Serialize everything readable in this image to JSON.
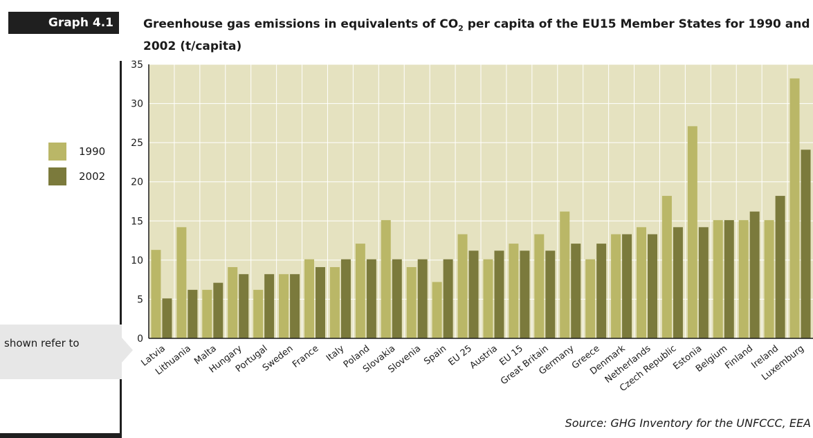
{
  "header": {
    "graph_label": "Graph 4.1",
    "title_main": "Greenhouse gas emissions in equivalents of CO",
    "title_sub": "2",
    "title_rest": " per capita of the EU15 Member States for 1990 and 2002 (t/capita)"
  },
  "legend": {
    "items": [
      {
        "label": "1990",
        "color": "#bab767"
      },
      {
        "label": "2002",
        "color": "#7b7a3c"
      }
    ]
  },
  "side_note": {
    "text": "shown refer to"
  },
  "source": "Source: GHG Inventory for the UNFCCC, EEA",
  "colors": {
    "plot_background": "#e5e2c0",
    "gridline": "#ffffff",
    "series_1990": "#bab767",
    "series_2002": "#7b7a3c"
  },
  "chart_data": {
    "type": "bar",
    "title": "Greenhouse gas emissions in equivalents of CO2 per capita of the EU15 Member States for 1990 and 2002 (t/capita)",
    "xlabel": "",
    "ylabel": "",
    "ylim": [
      0,
      35
    ],
    "yticks": [
      0,
      5,
      10,
      15,
      20,
      25,
      30,
      35
    ],
    "grid": true,
    "legend_position": "left",
    "categories": [
      "Latvia",
      "Lithuania",
      "Malta",
      "Hungary",
      "Portugal",
      "Sweden",
      "France",
      "Italy",
      "Poland",
      "Slovakia",
      "Slovenia",
      "Spain",
      "EU 25",
      "Austria",
      "EU 15",
      "Great Britain",
      "Germany",
      "Greece",
      "Denmark",
      "Netherlands",
      "Czech Republic",
      "Estonia",
      "Belgium",
      "Finland",
      "Ireland",
      "Luxemburg"
    ],
    "series": [
      {
        "name": "1990",
        "values": [
          11.3,
          14.2,
          6.2,
          9.1,
          6.2,
          8.2,
          10.1,
          9.1,
          12.1,
          15.1,
          9.1,
          7.2,
          13.3,
          10.1,
          12.1,
          13.3,
          16.2,
          10.1,
          13.3,
          14.2,
          18.2,
          27.1,
          15.1,
          15.1,
          15.1,
          33.2
        ]
      },
      {
        "name": "2002",
        "values": [
          5.1,
          6.2,
          7.1,
          8.2,
          8.2,
          8.2,
          9.1,
          10.1,
          10.1,
          10.1,
          10.1,
          10.1,
          11.2,
          11.2,
          11.2,
          11.2,
          12.1,
          12.1,
          13.3,
          13.3,
          14.2,
          14.2,
          15.1,
          16.2,
          18.2,
          24.1
        ]
      }
    ]
  }
}
